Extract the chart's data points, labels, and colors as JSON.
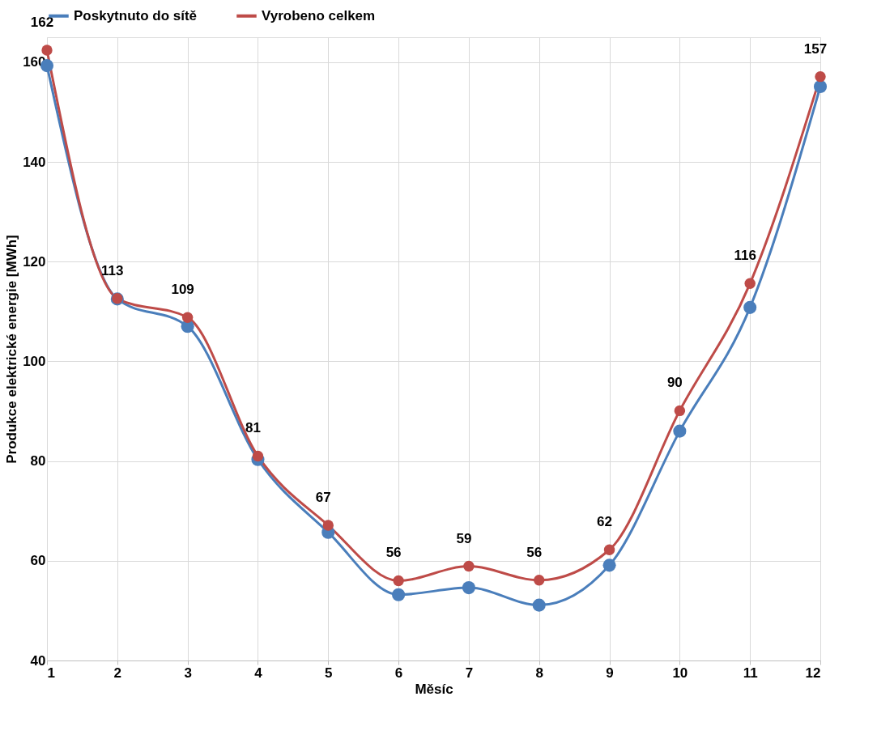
{
  "chart_data": {
    "type": "line",
    "xlabel": "Měsíc",
    "ylabel": "Produkce elektrické energie [MWh]",
    "x": [
      1,
      2,
      3,
      4,
      5,
      6,
      7,
      8,
      9,
      10,
      11,
      12
    ],
    "series": [
      {
        "name": "Poskytnuto do sítě",
        "color": "#4a7ebb",
        "values": [
          159.3,
          112.5,
          107.0,
          80.3,
          65.7,
          53.2,
          54.6,
          51.1,
          59.1,
          86.0,
          110.8,
          155.1
        ]
      },
      {
        "name": "Vyrobeno celkem",
        "color": "#be4b48",
        "values": [
          162.4,
          112.6,
          108.8,
          81.0,
          67.1,
          56.0,
          58.9,
          56.1,
          62.2,
          90.1,
          115.6,
          157.1
        ],
        "value_labels": [
          "162",
          "113",
          "109",
          "81",
          "67",
          "56",
          "59",
          "56",
          "62",
          "90",
          "116",
          "157"
        ]
      }
    ],
    "xlim": [
      1,
      12
    ],
    "xticks": [
      1,
      2,
      3,
      4,
      5,
      6,
      7,
      8,
      9,
      10,
      11,
      12
    ],
    "ylim": [
      40,
      165
    ],
    "yticks": [
      40,
      60,
      80,
      100,
      120,
      140,
      160
    ],
    "grid": true,
    "legend": "top",
    "marker": "circle",
    "line_style": "solid"
  }
}
